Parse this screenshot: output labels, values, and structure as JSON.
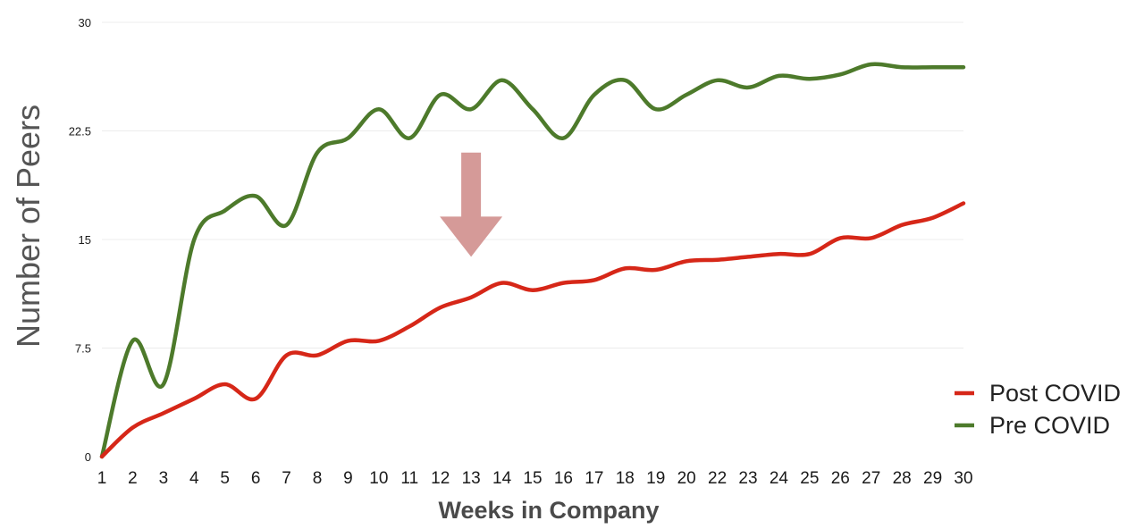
{
  "chart_data": {
    "type": "line",
    "title": "",
    "xlabel": "Weeks in Company",
    "ylabel": "Number of Peers",
    "x": [
      1,
      2,
      3,
      4,
      5,
      6,
      7,
      8,
      9,
      10,
      11,
      12,
      13,
      14,
      15,
      16,
      17,
      18,
      19,
      20,
      22,
      23,
      24,
      25,
      26,
      27,
      28,
      29,
      30
    ],
    "x_tick_labels": [
      "1",
      "2",
      "3",
      "4",
      "5",
      "6",
      "7",
      "8",
      "9",
      "10",
      "11",
      "12",
      "13",
      "14",
      "15",
      "16",
      "17",
      "18",
      "19",
      "20",
      "22",
      "23",
      "24",
      "25",
      "26",
      "27",
      "28",
      "29",
      "30"
    ],
    "ylim": [
      0,
      30
    ],
    "y_ticks": [
      0,
      7.5,
      15,
      22.5,
      30
    ],
    "y_tick_labels": [
      "0",
      "7.5",
      "15",
      "22.5",
      "30"
    ],
    "grid": true,
    "legend_position": "bottom-right",
    "series": [
      {
        "name": "Post COVID",
        "color": "#d62718",
        "values": [
          0,
          2,
          3,
          4,
          5,
          4,
          7,
          7,
          8,
          8,
          9,
          10.3,
          11,
          12,
          11.5,
          12,
          12.2,
          13,
          12.9,
          13.5,
          13.6,
          13.8,
          14,
          14,
          15.1,
          15.1,
          16,
          16.5,
          17.5
        ]
      },
      {
        "name": "Pre COVID",
        "color": "#4d7a2b",
        "values": [
          0,
          8,
          5,
          15,
          17,
          18,
          16,
          21,
          22,
          24,
          22,
          25,
          24,
          26,
          24,
          22,
          25,
          26,
          24,
          25,
          26,
          25.5,
          26.3,
          26.1,
          26.4,
          27.1,
          26.9,
          26.9,
          26.9
        ]
      }
    ],
    "annotations": [
      {
        "type": "arrow",
        "direction": "down",
        "color": "#d59a98",
        "at_x": 13,
        "from_y": 21,
        "to_y": 13.8
      }
    ]
  }
}
